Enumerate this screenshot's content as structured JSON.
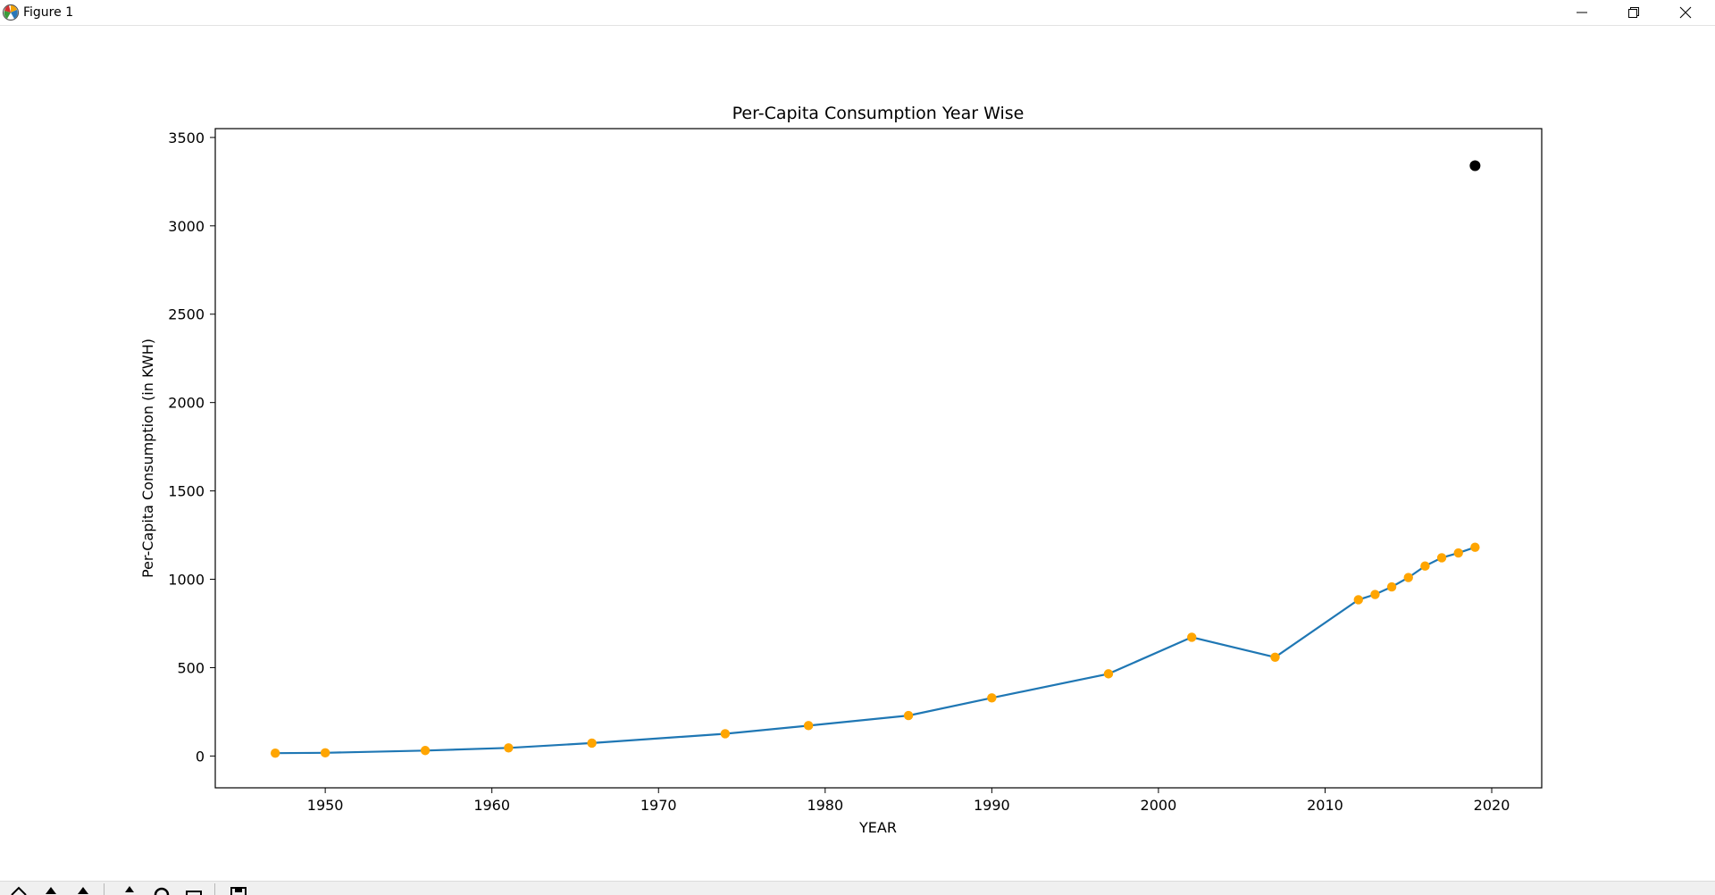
{
  "window": {
    "title": "Figure 1",
    "icons": [
      "matplotlib-icon",
      "minimize-icon",
      "maximize-icon",
      "close-icon"
    ]
  },
  "toolbar": {
    "icons": [
      "home-icon",
      "back-icon",
      "forward-icon",
      "pan-icon",
      "zoom-icon",
      "subplots-icon",
      "save-icon"
    ]
  },
  "chart_data": {
    "type": "line",
    "title": "Per-Capita Consumption Year Wise",
    "xlabel": "YEAR",
    "ylabel": "Per-Capita Consumption (in KWH)",
    "xlim": [
      1943.4,
      2023.0
    ],
    "ylim": [
      -180,
      3550
    ],
    "xticks": [
      1950,
      1960,
      1970,
      1980,
      1990,
      2000,
      2010,
      2020
    ],
    "yticks": [
      0,
      500,
      1000,
      1500,
      2000,
      2500,
      3000,
      3500
    ],
    "grid": false,
    "series": [
      {
        "x": [
          1947,
          1950,
          1956,
          1961,
          1966,
          1974,
          1979,
          1985,
          1990,
          1997,
          2002,
          2007,
          2012,
          2013,
          2014,
          2015,
          2016,
          2017,
          2018,
          2019
        ],
        "y": [
          16,
          18,
          31,
          46,
          73,
          126,
          172,
          229,
          329,
          465,
          672,
          559,
          884,
          914,
          957,
          1010,
          1075,
          1122,
          1149,
          1181
        ],
        "color": "#1f77b4",
        "marker_color": "#ffa500"
      }
    ],
    "extra_points": [
      {
        "x": 2019,
        "y": 3340,
        "color": "#000000"
      }
    ]
  }
}
